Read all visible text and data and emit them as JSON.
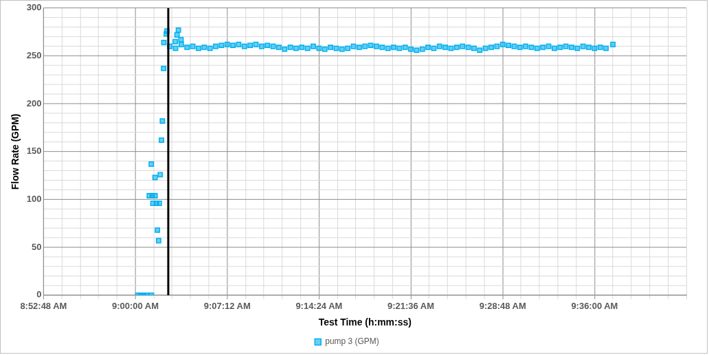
{
  "chart_data": {
    "type": "scatter",
    "xlabel": "Test Time (h:mm:ss)",
    "ylabel": "Flow Rate (GPM)",
    "xlim": [
      8.88,
      9.72
    ],
    "xticks": [
      {
        "value": 8.88,
        "label": "8:52:48 AM"
      },
      {
        "value": 8.904,
        "label": null
      },
      {
        "value": 8.928,
        "label": null
      },
      {
        "value": 8.952,
        "label": null
      },
      {
        "value": 8.976,
        "label": null
      },
      {
        "value": 9,
        "label": "9:00:00 AM"
      },
      {
        "value": 9.024,
        "label": null
      },
      {
        "value": 9.048,
        "label": null
      },
      {
        "value": 9.072,
        "label": null
      },
      {
        "value": 9.096,
        "label": null
      },
      {
        "value": 9.12,
        "label": "9:07:12 AM"
      },
      {
        "value": 9.144,
        "label": null
      },
      {
        "value": 9.168,
        "label": null
      },
      {
        "value": 9.192,
        "label": null
      },
      {
        "value": 9.216,
        "label": null
      },
      {
        "value": 9.24,
        "label": "9:14:24 AM"
      },
      {
        "value": 9.264,
        "label": null
      },
      {
        "value": 9.288,
        "label": null
      },
      {
        "value": 9.312,
        "label": null
      },
      {
        "value": 9.336,
        "label": null
      },
      {
        "value": 9.36,
        "label": "9:21:36 AM"
      },
      {
        "value": 9.384,
        "label": null
      },
      {
        "value": 9.408,
        "label": null
      },
      {
        "value": 9.432,
        "label": null
      },
      {
        "value": 9.456,
        "label": null
      },
      {
        "value": 9.48,
        "label": "9:28:48 AM"
      },
      {
        "value": 9.504,
        "label": null
      },
      {
        "value": 9.528,
        "label": null
      },
      {
        "value": 9.552,
        "label": null
      },
      {
        "value": 9.576,
        "label": null
      },
      {
        "value": 9.6,
        "label": "9:36:00 AM"
      },
      {
        "value": 9.624,
        "label": null
      },
      {
        "value": 9.648,
        "label": null
      },
      {
        "value": 9.672,
        "label": null
      },
      {
        "value": 9.696,
        "label": null
      },
      {
        "value": 9.72,
        "label": null
      }
    ],
    "ylim": [
      0,
      300
    ],
    "yticks": [
      0,
      {
        "value": 10,
        "label": null
      },
      {
        "value": 20,
        "label": null
      },
      {
        "value": 30,
        "label": null
      },
      {
        "value": 40,
        "label": null
      },
      50,
      {
        "value": 60,
        "label": null
      },
      {
        "value": 70,
        "label": null
      },
      {
        "value": 80,
        "label": null
      },
      {
        "value": 90,
        "label": null
      },
      100,
      {
        "value": 110,
        "label": null
      },
      {
        "value": 120,
        "label": null
      },
      {
        "value": 130,
        "label": null
      },
      {
        "value": 140,
        "label": null
      },
      150,
      {
        "value": 160,
        "label": null
      },
      {
        "value": 170,
        "label": null
      },
      {
        "value": 180,
        "label": null
      },
      {
        "value": 190,
        "label": null
      },
      200,
      {
        "value": 210,
        "label": null
      },
      {
        "value": 220,
        "label": null
      },
      {
        "value": 230,
        "label": null
      },
      {
        "value": 240,
        "label": null
      },
      250,
      {
        "value": 260,
        "label": null
      },
      {
        "value": 270,
        "label": null
      },
      {
        "value": 280,
        "label": null
      },
      {
        "value": 290,
        "label": null
      },
      300
    ],
    "grid": true,
    "legend": "bottom",
    "marker": "square",
    "ref_lines": [
      {
        "axis": "x",
        "value": 9.043,
        "color": "#000000"
      }
    ],
    "series": [
      {
        "name": "pump 3 (GPM)",
        "color": "#00b0f0",
        "x": [
          9.0033,
          9.007,
          9.0108,
          9.0145,
          9.021,
          9.0182,
          9.0208,
          9.022,
          9.0229,
          9.0257,
          9.0257,
          9.0276,
          9.0288,
          9.0304,
          9.0313,
          9.0325,
          9.0341,
          9.0353,
          9.0369,
          9.0372,
          9.0404,
          9.0413,
          9.0521,
          9.0544,
          9.0562,
          9.0596,
          9.045,
          9.0525,
          9.06,
          9.0675,
          9.075,
          9.0825,
          9.09,
          9.0975,
          9.105,
          9.1125,
          9.12,
          9.1275,
          9.135,
          9.1425,
          9.15,
          9.1575,
          9.165,
          9.1725,
          9.18,
          9.1875,
          9.195,
          9.2025,
          9.21,
          9.2175,
          9.225,
          9.2325,
          9.24,
          9.2475,
          9.255,
          9.2625,
          9.27,
          9.2775,
          9.285,
          9.2925,
          9.3,
          9.3075,
          9.315,
          9.3225,
          9.33,
          9.3375,
          9.345,
          9.3525,
          9.36,
          9.3675,
          9.375,
          9.3825,
          9.39,
          9.3975,
          9.405,
          9.4125,
          9.42,
          9.4275,
          9.435,
          9.4425,
          9.45,
          9.4575,
          9.465,
          9.4725,
          9.48,
          9.4875,
          9.495,
          9.5025,
          9.51,
          9.5175,
          9.525,
          9.5325,
          9.54,
          9.5475,
          9.555,
          9.5625,
          9.57,
          9.5775,
          9.585,
          9.5925,
          9.6,
          9.6075,
          9.615,
          9.624
        ],
        "values": [
          0,
          0,
          0,
          0,
          0,
          104,
          137,
          104,
          96,
          123,
          104,
          96,
          68,
          57,
          96,
          126,
          162,
          182,
          237,
          264,
          273,
          276,
          265,
          272,
          277,
          267,
          260,
          258,
          262,
          259,
          260,
          258,
          259,
          258,
          260,
          261,
          262,
          261,
          262,
          260,
          261,
          262,
          260,
          261,
          260,
          259,
          257,
          259,
          258,
          259,
          258,
          260,
          258,
          257,
          259,
          258,
          257,
          258,
          260,
          259,
          260,
          261,
          260,
          259,
          258,
          259,
          258,
          259,
          257,
          256,
          257,
          259,
          258,
          260,
          259,
          258,
          259,
          260,
          259,
          258,
          256,
          258,
          259,
          260,
          262,
          261,
          260,
          259,
          260,
          259,
          258,
          259,
          260,
          258,
          259,
          260,
          259,
          258,
          260,
          259,
          258,
          259,
          258,
          262
        ]
      }
    ]
  }
}
